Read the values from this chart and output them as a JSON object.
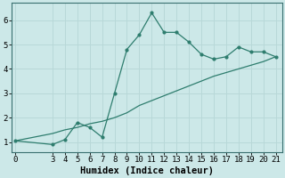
{
  "line1_x": [
    0,
    3,
    4,
    5,
    6,
    7,
    8,
    9,
    10,
    11,
    12,
    13,
    14,
    15,
    16,
    17,
    18,
    19,
    20,
    21
  ],
  "line1_y": [
    1.05,
    0.9,
    1.1,
    1.8,
    1.6,
    1.2,
    3.0,
    4.8,
    5.4,
    6.3,
    5.5,
    5.5,
    5.1,
    4.6,
    4.4,
    4.5,
    4.9,
    4.7,
    4.7,
    4.5
  ],
  "line2_x": [
    0,
    3,
    4,
    5,
    6,
    7,
    8,
    9,
    10,
    11,
    12,
    13,
    14,
    15,
    16,
    17,
    18,
    19,
    20,
    21
  ],
  "line2_y": [
    1.05,
    1.35,
    1.5,
    1.6,
    1.75,
    1.85,
    2.0,
    2.2,
    2.5,
    2.7,
    2.9,
    3.1,
    3.3,
    3.5,
    3.7,
    3.85,
    4.0,
    4.15,
    4.3,
    4.5
  ],
  "line_color": "#2e7d6e",
  "bg_color": "#cce8e8",
  "grid_color": "#b8d8d8",
  "xlabel": "Humidex (Indice chaleur)",
  "xticks": [
    0,
    3,
    4,
    5,
    6,
    7,
    8,
    9,
    10,
    11,
    12,
    13,
    14,
    15,
    16,
    17,
    18,
    19,
    20,
    21
  ],
  "yticks": [
    1,
    2,
    3,
    4,
    5,
    6
  ],
  "xlim": [
    -0.3,
    21.5
  ],
  "ylim": [
    0.6,
    6.7
  ],
  "xlabel_fontsize": 7.5,
  "tick_fontsize": 6.5
}
